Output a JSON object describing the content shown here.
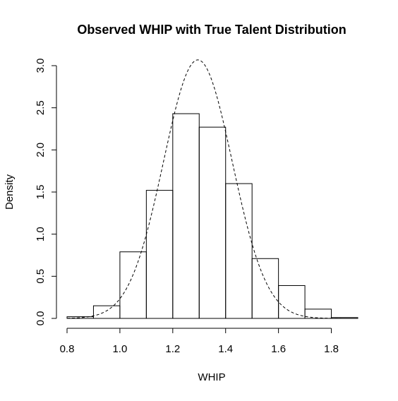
{
  "chart_data": {
    "type": "histogram",
    "title": "Observed WHIP with True Talent Distribution",
    "xlabel": "WHIP",
    "ylabel": "Density",
    "xlim": [
      0.8,
      1.9
    ],
    "ylim": [
      0,
      3.0
    ],
    "x_ticks": [
      "0.8",
      "1.0",
      "1.2",
      "1.4",
      "1.6",
      "1.8"
    ],
    "y_ticks": [
      "0.0",
      "0.5",
      "1.0",
      "1.5",
      "2.0",
      "2.5",
      "3.0"
    ],
    "bins": [
      {
        "start": 0.8,
        "end": 0.9,
        "density": 0.02
      },
      {
        "start": 0.9,
        "end": 1.0,
        "density": 0.15
      },
      {
        "start": 1.0,
        "end": 1.1,
        "density": 0.79
      },
      {
        "start": 1.1,
        "end": 1.2,
        "density": 1.52
      },
      {
        "start": 1.2,
        "end": 1.3,
        "density": 2.43
      },
      {
        "start": 1.3,
        "end": 1.4,
        "density": 2.27
      },
      {
        "start": 1.4,
        "end": 1.5,
        "density": 1.6
      },
      {
        "start": 1.5,
        "end": 1.6,
        "density": 0.71
      },
      {
        "start": 1.6,
        "end": 1.7,
        "density": 0.39
      },
      {
        "start": 1.7,
        "end": 1.8,
        "density": 0.11
      },
      {
        "start": 1.8,
        "end": 1.9,
        "density": 0.01
      }
    ],
    "curve": {
      "style": "dashed",
      "distribution": "normal",
      "mean": 1.295,
      "sd": 0.13
    }
  }
}
